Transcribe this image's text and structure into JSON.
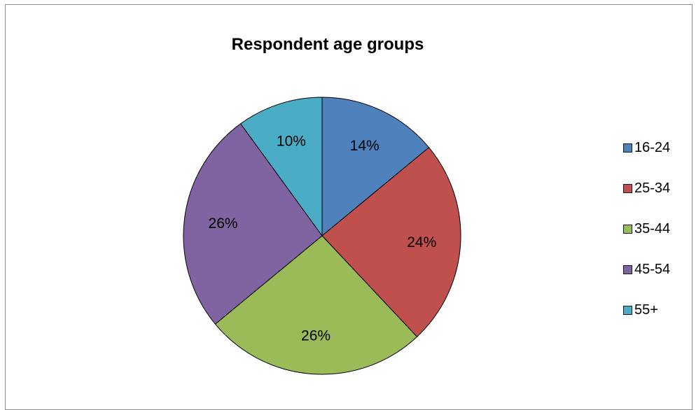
{
  "chart_data": {
    "type": "pie",
    "title": "Respondent age groups",
    "categories": [
      "16-24",
      "25-34",
      "35-44",
      "45-54",
      "55+"
    ],
    "values": [
      14,
      24,
      26,
      26,
      10
    ],
    "data_labels": [
      "14%",
      "24%",
      "26%",
      "26%",
      "10%"
    ],
    "colors": [
      "#4f81bd",
      "#c0504d",
      "#9bbb59",
      "#8064a2",
      "#4bacc6"
    ],
    "start_angle_deg": 0,
    "direction": "clockwise",
    "legend_position": "right"
  }
}
